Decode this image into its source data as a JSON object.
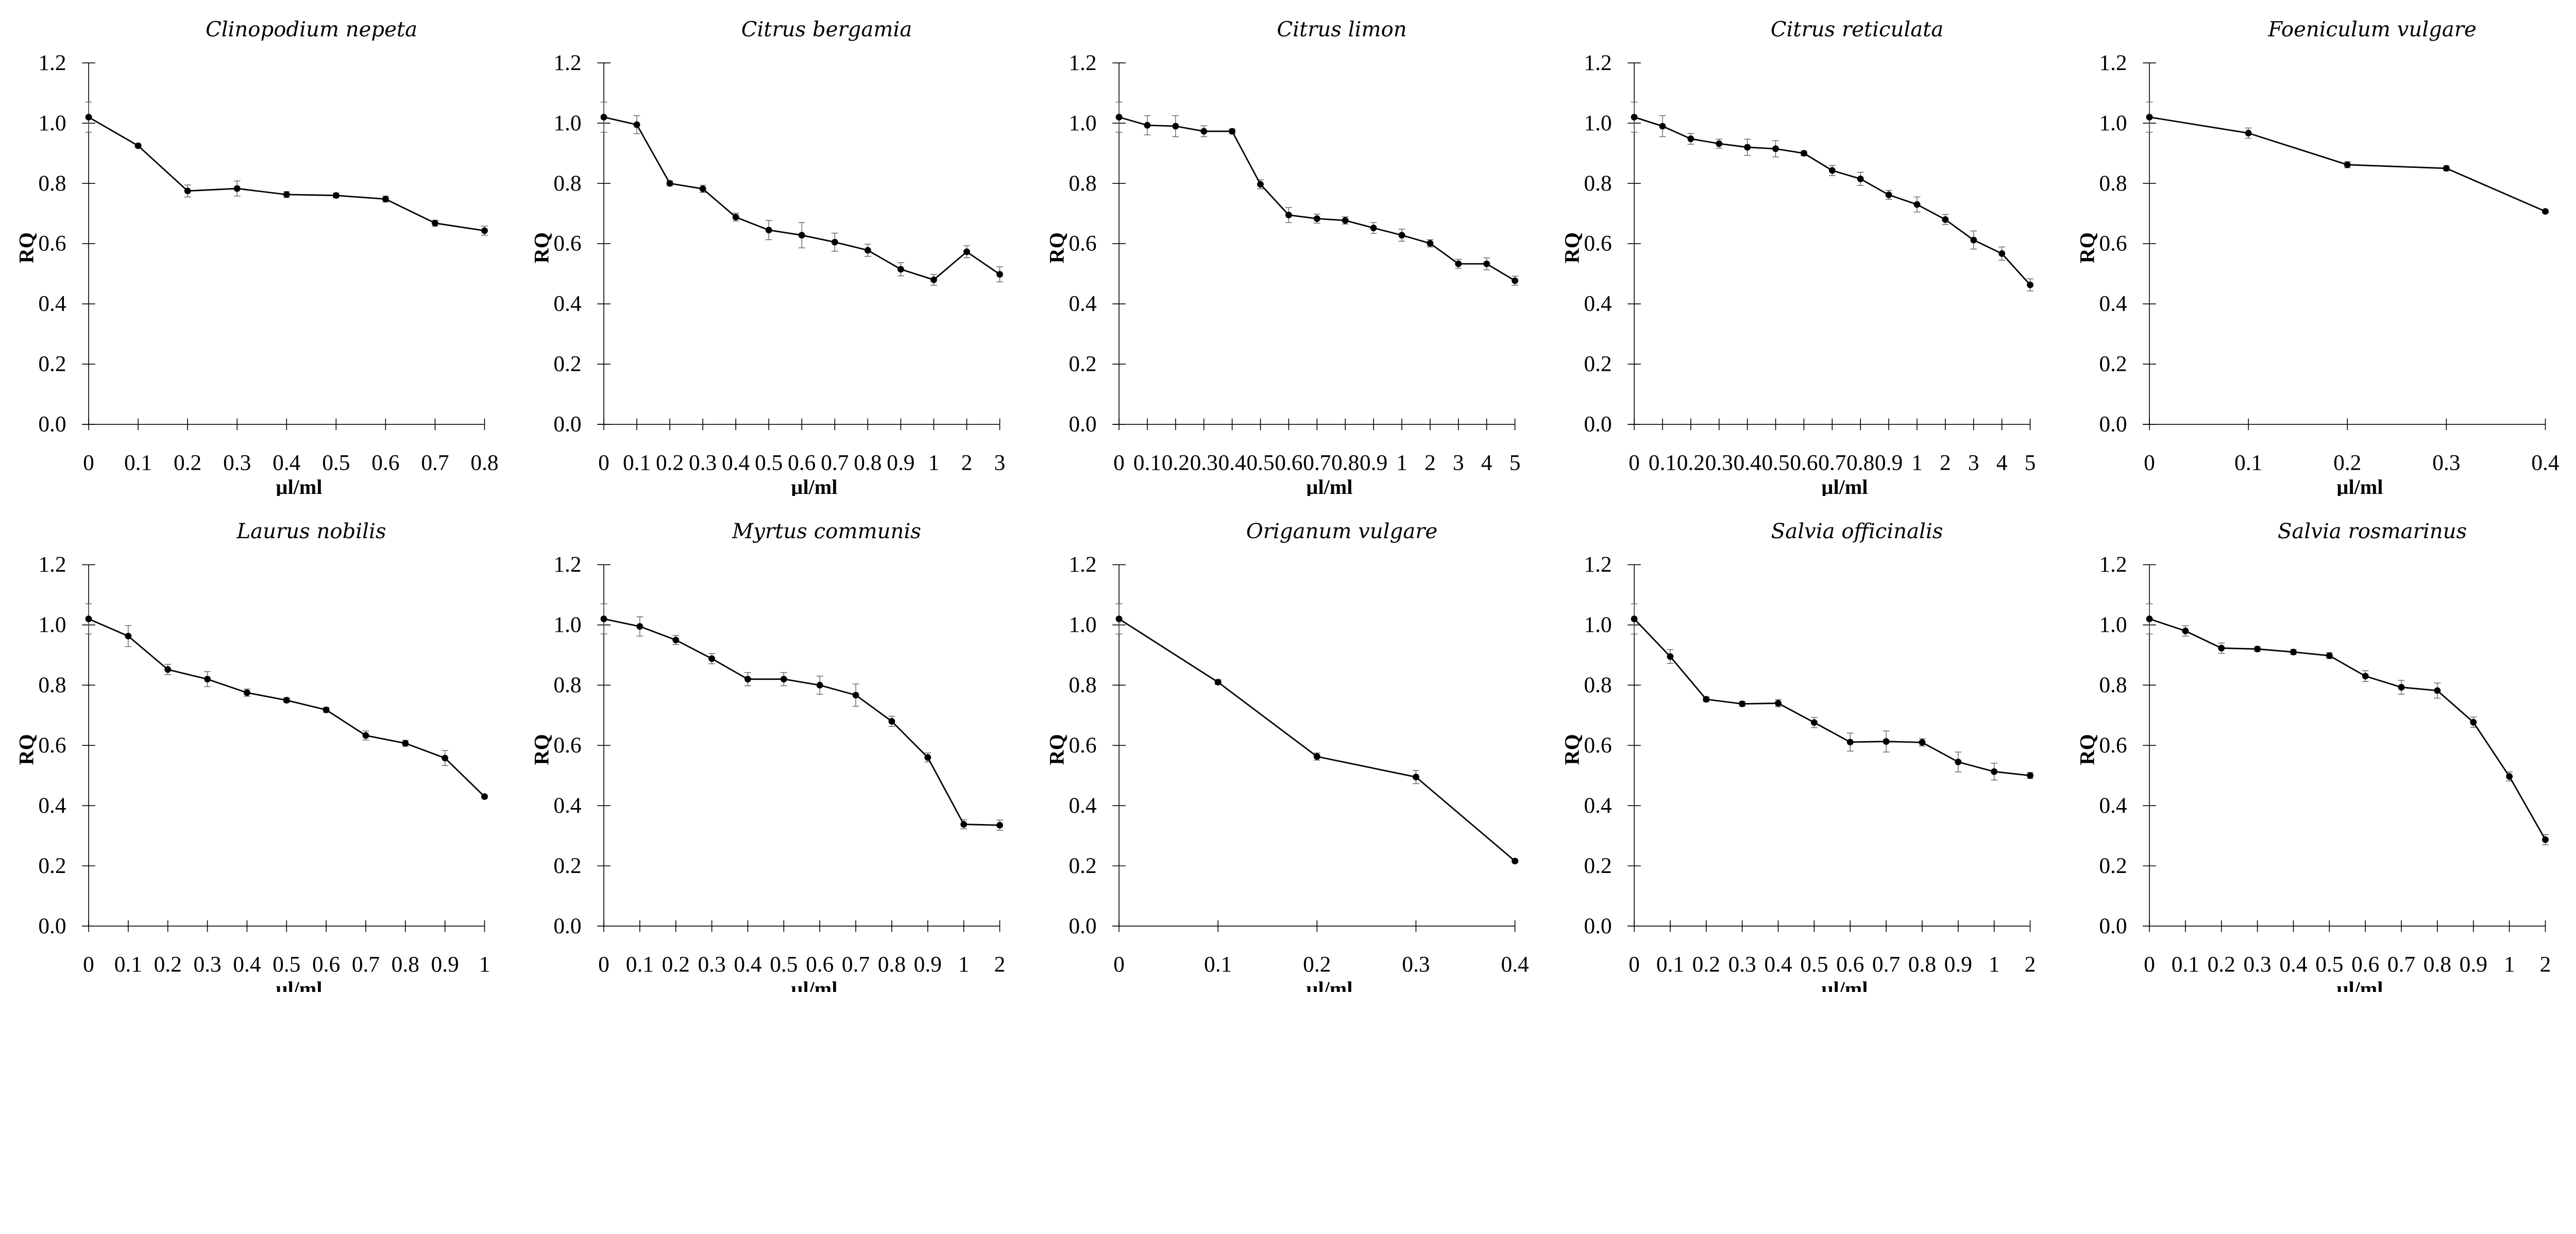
{
  "chart_data": [
    {
      "type": "line",
      "title": "Clinopodium nepeta",
      "xlabel": "µl/ml",
      "ylabel": "RQ",
      "ylim": [
        0,
        1.2
      ],
      "yticks": [
        "0.0",
        "0.2",
        "0.4",
        "0.6",
        "0.8",
        "1.0",
        "1.2"
      ],
      "categories": [
        "0",
        "0.1",
        "0.2",
        "0.3",
        "0.4",
        "0.5",
        "0.6",
        "0.7",
        "0.8"
      ],
      "values": [
        1.02,
        0.925,
        0.775,
        0.783,
        0.763,
        0.76,
        0.748,
        0.668,
        0.643
      ],
      "errors": [
        0.05,
        0.006,
        0.02,
        0.025,
        0.01,
        0.008,
        0.01,
        0.01,
        0.015
      ]
    },
    {
      "type": "line",
      "title": "Citrus bergamia",
      "xlabel": "µl/ml",
      "ylabel": "RQ",
      "ylim": [
        0,
        1.2
      ],
      "yticks": [
        "0.0",
        "0.2",
        "0.4",
        "0.6",
        "0.8",
        "1.0",
        "1.2"
      ],
      "categories": [
        "0",
        "0.1",
        "0.2",
        "0.3",
        "0.4",
        "0.5",
        "0.6",
        "0.7",
        "0.8",
        "0.9",
        "1",
        "2",
        "3"
      ],
      "values": [
        1.02,
        0.995,
        0.8,
        0.782,
        0.688,
        0.645,
        0.628,
        0.605,
        0.578,
        0.515,
        0.48,
        0.573,
        0.498
      ],
      "errors": [
        0.05,
        0.03,
        0.008,
        0.012,
        0.013,
        0.032,
        0.042,
        0.03,
        0.02,
        0.022,
        0.018,
        0.02,
        0.025
      ]
    },
    {
      "type": "line",
      "title": "Citrus limon",
      "xlabel": "µl/ml",
      "ylabel": "RQ",
      "ylim": [
        0,
        1.2
      ],
      "yticks": [
        "0.0",
        "0.2",
        "0.4",
        "0.6",
        "0.8",
        "1.0",
        "1.2"
      ],
      "categories": [
        "0",
        "0.1",
        "0.2",
        "0.3",
        "0.4",
        "0.5",
        "0.6",
        "0.7",
        "0.8",
        "0.9",
        "1",
        "2",
        "3",
        "4",
        "5"
      ],
      "values": [
        1.02,
        0.993,
        0.99,
        0.973,
        0.973,
        0.797,
        0.695,
        0.683,
        0.677,
        0.652,
        0.628,
        0.601,
        0.533,
        0.533,
        0.477
      ],
      "errors": [
        0.05,
        0.032,
        0.035,
        0.018,
        0.008,
        0.015,
        0.025,
        0.015,
        0.012,
        0.018,
        0.02,
        0.012,
        0.015,
        0.02,
        0.015
      ]
    },
    {
      "type": "line",
      "title": "Citrus reticulata",
      "xlabel": "µl/ml",
      "ylabel": "RQ",
      "ylim": [
        0,
        1.2
      ],
      "yticks": [
        "0.0",
        "0.2",
        "0.4",
        "0.6",
        "0.8",
        "1.0",
        "1.2"
      ],
      "categories": [
        "0",
        "0.1",
        "0.2",
        "0.3",
        "0.4",
        "0.5",
        "0.6",
        "0.7",
        "0.8",
        "0.9",
        "1",
        "2",
        "3",
        "4",
        "5"
      ],
      "values": [
        1.02,
        0.99,
        0.948,
        0.932,
        0.92,
        0.915,
        0.9,
        0.843,
        0.815,
        0.762,
        0.73,
        0.68,
        0.612,
        0.567,
        0.463
      ],
      "errors": [
        0.05,
        0.035,
        0.018,
        0.015,
        0.027,
        0.027,
        0.008,
        0.017,
        0.022,
        0.015,
        0.025,
        0.017,
        0.03,
        0.022,
        0.02
      ]
    },
    {
      "type": "line",
      "title": "Foeniculum vulgare",
      "xlabel": "µl/ml",
      "ylabel": "RQ",
      "ylim": [
        0,
        1.2
      ],
      "yticks": [
        "0.0",
        "0.2",
        "0.4",
        "0.6",
        "0.8",
        "1.0",
        "1.2"
      ],
      "categories": [
        "0",
        "0.1",
        "0.2",
        "0.3",
        "0.4"
      ],
      "values": [
        1.02,
        0.967,
        0.862,
        0.85,
        0.707
      ],
      "errors": [
        0.05,
        0.017,
        0.01,
        0.008,
        0.005
      ]
    },
    {
      "type": "line",
      "title": "Laurus nobilis",
      "xlabel": "µl/ml",
      "ylabel": "RQ",
      "ylim": [
        0,
        1.2
      ],
      "yticks": [
        "0.0",
        "0.2",
        "0.4",
        "0.6",
        "0.8",
        "1.0",
        "1.2"
      ],
      "categories": [
        "0",
        "0.1",
        "0.2",
        "0.3",
        "0.4",
        "0.5",
        "0.6",
        "0.7",
        "0.8",
        "0.9",
        "1"
      ],
      "values": [
        1.02,
        0.963,
        0.852,
        0.82,
        0.775,
        0.75,
        0.718,
        0.633,
        0.607,
        0.558,
        0.43
      ],
      "errors": [
        0.05,
        0.035,
        0.017,
        0.025,
        0.012,
        0.008,
        0.008,
        0.015,
        0.01,
        0.025,
        0.005
      ]
    },
    {
      "type": "line",
      "title": "Myrtus communis",
      "xlabel": "µl/ml",
      "ylabel": "RQ",
      "ylim": [
        0,
        1.2
      ],
      "yticks": [
        "0.0",
        "0.2",
        "0.4",
        "0.6",
        "0.8",
        "1.0",
        "1.2"
      ],
      "categories": [
        "0",
        "0.1",
        "0.2",
        "0.3",
        "0.4",
        "0.5",
        "0.6",
        "0.7",
        "0.8",
        "0.9",
        "1",
        "2"
      ],
      "values": [
        1.02,
        0.995,
        0.95,
        0.888,
        0.82,
        0.82,
        0.8,
        0.767,
        0.68,
        0.56,
        0.338,
        0.335
      ],
      "errors": [
        0.05,
        0.032,
        0.015,
        0.017,
        0.022,
        0.022,
        0.03,
        0.037,
        0.017,
        0.015,
        0.015,
        0.017
      ]
    },
    {
      "type": "line",
      "title": "Origanum vulgare",
      "xlabel": "µl/ml",
      "ylabel": "RQ",
      "ylim": [
        0,
        1.2
      ],
      "yticks": [
        "0.0",
        "0.2",
        "0.4",
        "0.6",
        "0.8",
        "1.0",
        "1.2"
      ],
      "categories": [
        "0",
        "0.1",
        "0.2",
        "0.3",
        "0.4"
      ],
      "values": [
        1.02,
        0.81,
        0.563,
        0.495,
        0.216
      ],
      "errors": [
        0.05,
        0.008,
        0.012,
        0.022,
        0.005
      ]
    },
    {
      "type": "line",
      "title": "Salvia officinalis",
      "xlabel": "µl/ml",
      "ylabel": "RQ",
      "ylim": [
        0,
        1.2
      ],
      "yticks": [
        "0.0",
        "0.2",
        "0.4",
        "0.6",
        "0.8",
        "1.0",
        "1.2"
      ],
      "categories": [
        "0",
        "0.1",
        "0.2",
        "0.3",
        "0.4",
        "0.5",
        "0.6",
        "0.7",
        "0.8",
        "0.9",
        "1",
        "2"
      ],
      "values": [
        1.02,
        0.895,
        0.753,
        0.738,
        0.74,
        0.676,
        0.611,
        0.613,
        0.61,
        0.545,
        0.513,
        0.5
      ],
      "errors": [
        0.05,
        0.023,
        0.008,
        0.008,
        0.012,
        0.017,
        0.03,
        0.035,
        0.012,
        0.033,
        0.028,
        0.01
      ]
    },
    {
      "type": "line",
      "title": "Salvia rosmarinus",
      "xlabel": "µl/ml",
      "ylabel": "RQ",
      "ylim": [
        0,
        1.2
      ],
      "yticks": [
        "0.0",
        "0.2",
        "0.4",
        "0.6",
        "0.8",
        "1.0",
        "1.2"
      ],
      "categories": [
        "0",
        "0.1",
        "0.2",
        "0.3",
        "0.4",
        "0.5",
        "0.6",
        "0.7",
        "0.8",
        "0.9",
        "1",
        "2"
      ],
      "values": [
        1.02,
        0.98,
        0.923,
        0.92,
        0.91,
        0.898,
        0.83,
        0.793,
        0.782,
        0.677,
        0.497,
        0.287
      ],
      "errors": [
        0.05,
        0.017,
        0.017,
        0.008,
        0.008,
        0.01,
        0.018,
        0.023,
        0.025,
        0.017,
        0.015,
        0.017
      ]
    }
  ],
  "colors": {
    "line": "#000000",
    "error_bar": "#555555"
  }
}
